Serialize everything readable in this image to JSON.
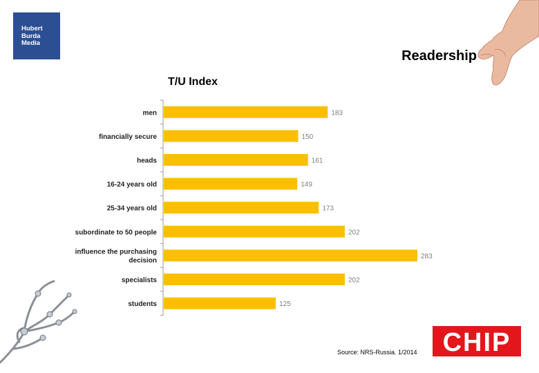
{
  "header": {
    "brand_logo": [
      "Hubert",
      "Burda",
      "Media"
    ],
    "title": "Readership"
  },
  "chart_data": {
    "type": "bar",
    "orientation": "horizontal",
    "title": "T/U Index",
    "categories": [
      [
        "men"
      ],
      [
        "financially secure"
      ],
      [
        "heads"
      ],
      [
        "16-24 years old"
      ],
      [
        "25-34 years old"
      ],
      [
        "subordinate to 50 people"
      ],
      [
        "influence the purchasing",
        "decision"
      ],
      [
        "specialists"
      ],
      [
        "students"
      ]
    ],
    "values": [
      183,
      150,
      161,
      149,
      173,
      202,
      283,
      202,
      125
    ],
    "xlim": [
      0,
      283
    ],
    "bar_color": "#fbbf00",
    "grid": false,
    "data_labels": true
  },
  "footer": {
    "source": "Source: NRS-Russia. 1/2014",
    "chip_logo": "CHIP",
    "chip_color": "#e3161c"
  },
  "decor": {
    "top_right": "hand-image",
    "bottom_left": "robot-hand-image"
  }
}
